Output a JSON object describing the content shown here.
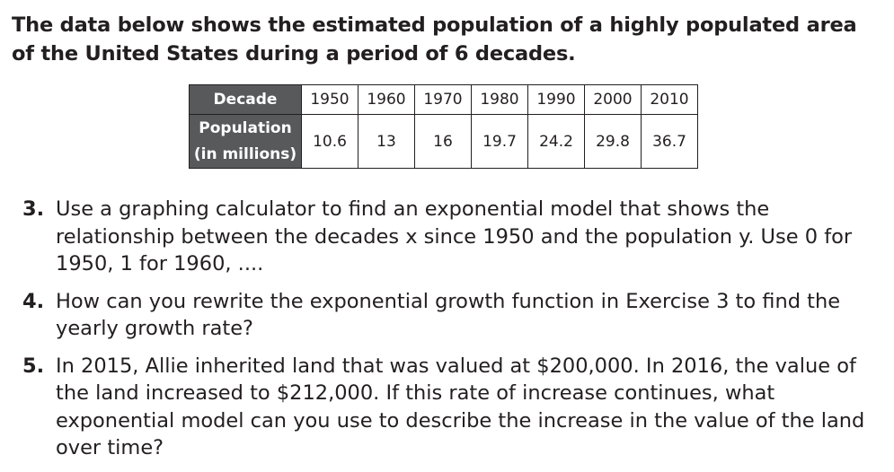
{
  "intro": "The data below shows the estimated population of a highly populated area of the United States during a period of 6 decades.",
  "table": {
    "row_header_1": "Decade",
    "row_header_2_line1": "Population",
    "row_header_2_line2": "(in millions)",
    "decades": [
      "1950",
      "1960",
      "1970",
      "1980",
      "1990",
      "2000",
      "2010"
    ],
    "populations": [
      "10.6",
      "13",
      "16",
      "19.7",
      "24.2",
      "29.8",
      "36.7"
    ]
  },
  "exercises": [
    {
      "number": "3.",
      "text": "Use a graphing calculator to find an exponential model that shows the relationship between the decades x since 1950 and the population y. Use 0 for 1950, 1 for 1960, ...."
    },
    {
      "number": "4.",
      "text": "How can you rewrite the exponential growth function in Exercise 3 to find the yearly growth rate?"
    },
    {
      "number": "5.",
      "text": "In 2015, Allie inherited land that was valued at $200,000. In 2016, the value of the land increased to $212,000. If this rate of increase continues, what exponential model can you use to describe the increase in the value of the land over time?"
    }
  ]
}
